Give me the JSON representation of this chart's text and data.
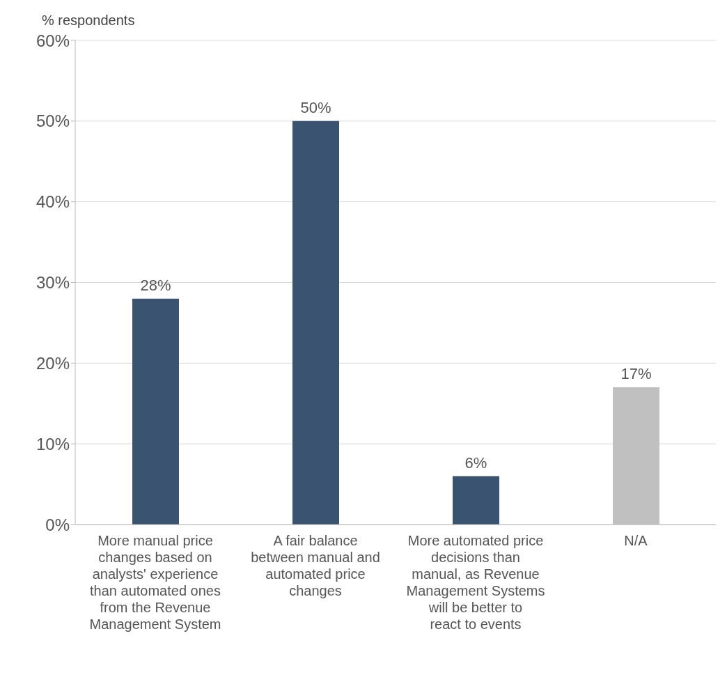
{
  "chart_data": {
    "type": "bar",
    "ylabel": "% respondents",
    "categories": [
      "More manual price changes based on analysts' experience than automated ones from the Revenue Management System",
      "A fair balance between manual and automated price changes",
      "More automated price decisions than manual, as Revenue Management Systems will be better to react to events",
      "N/A"
    ],
    "values": [
      28,
      50,
      6,
      17
    ],
    "colors": [
      "#3a5370",
      "#3a5370",
      "#3a5370",
      "#c0c0c0"
    ],
    "value_labels": [
      "28%",
      "50%",
      "6%",
      "17%"
    ],
    "ylim": [
      0,
      60
    ],
    "yticks": [
      {
        "value": 0,
        "label": "0%"
      },
      {
        "value": 10,
        "label": "10%"
      },
      {
        "value": 20,
        "label": "20%"
      },
      {
        "value": 30,
        "label": "30%"
      },
      {
        "value": 40,
        "label": "40%"
      },
      {
        "value": 50,
        "label": "50%"
      },
      {
        "value": 60,
        "label": "60%"
      }
    ],
    "grid": "y"
  }
}
